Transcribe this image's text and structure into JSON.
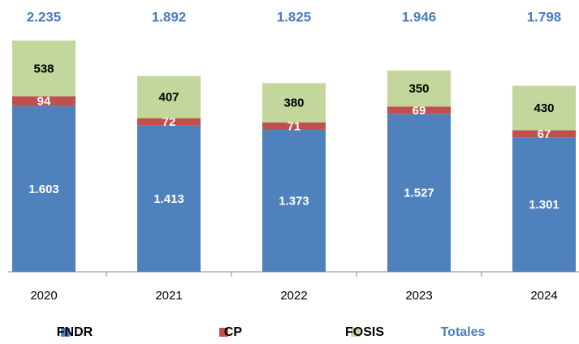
{
  "chart_data": {
    "type": "stacked_bar",
    "categories": [
      "2020",
      "2021",
      "2022",
      "2023",
      "2024"
    ],
    "series": [
      {
        "name": "FNDR",
        "color": "#4f81bd",
        "values": [
          1603,
          1413,
          1373,
          1527,
          1301
        ],
        "value_labels": [
          "1.603",
          "1.413",
          "1.373",
          "1.527",
          "1.301"
        ],
        "label_color": "#ffffff"
      },
      {
        "name": "CP",
        "color": "#c0504d",
        "values": [
          94,
          72,
          71,
          69,
          67
        ],
        "label_color": "#ffffff"
      },
      {
        "name": "FOSIS",
        "color": "#c3d69b",
        "values": [
          538,
          407,
          380,
          350,
          430
        ],
        "label_color": "#000000"
      }
    ],
    "totals": {
      "name": "Totales",
      "color": "#4a7ebb",
      "values": [
        2235,
        1892,
        1825,
        1946,
        1798
      ],
      "value_labels": [
        "2.235",
        "1.892",
        "1.825",
        "1.946",
        "1.798"
      ]
    }
  }
}
